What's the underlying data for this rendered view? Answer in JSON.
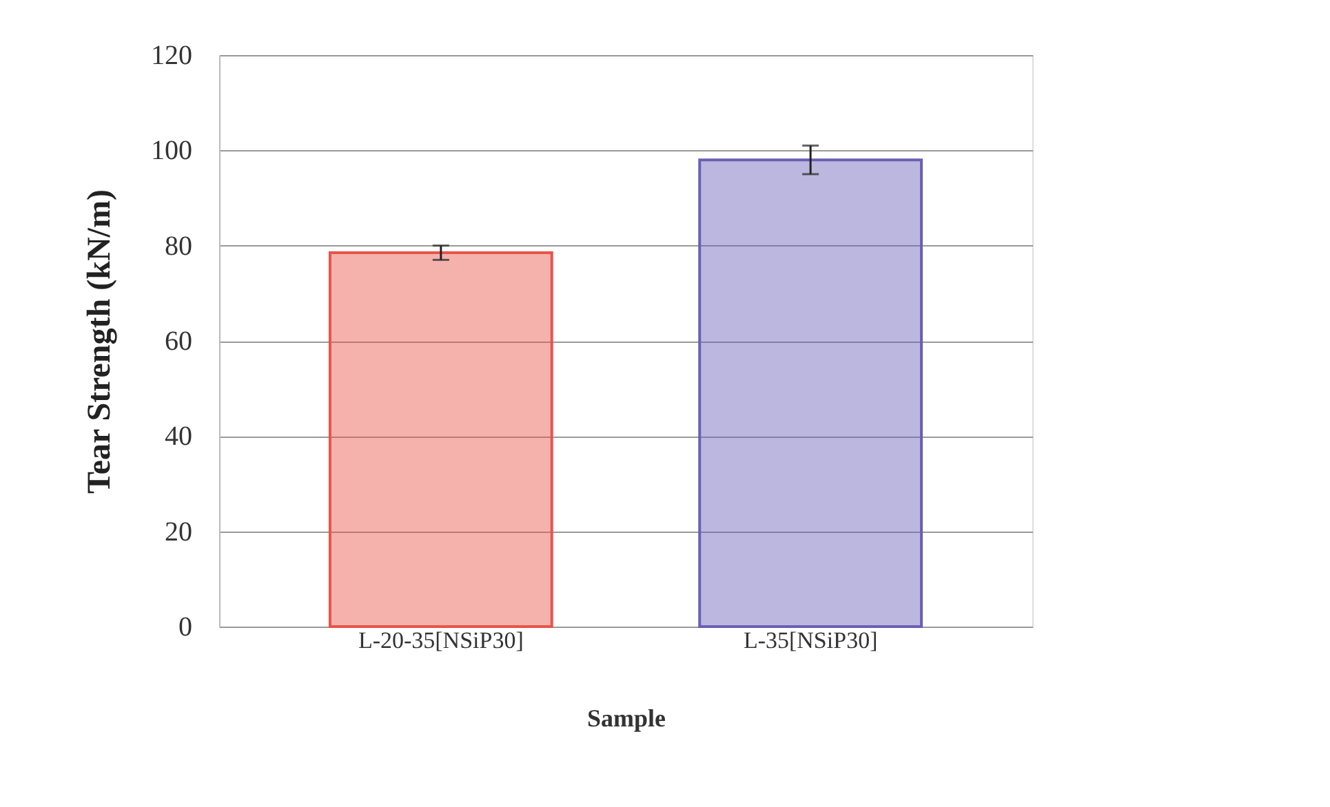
{
  "chart_data": {
    "type": "bar",
    "xlabel": "Sample",
    "ylabel": "Tear Strength (kN/m)",
    "categories": [
      "L-20-35[NSiP30]",
      "L-35[NSiP30]"
    ],
    "values": [
      78.5,
      98
    ],
    "errors": [
      1.5,
      3
    ],
    "colors": [
      "#e8544a",
      "#6a5fb5"
    ],
    "ylim": [
      0,
      120
    ],
    "yticks": [
      0,
      20,
      40,
      60,
      80,
      100,
      120
    ],
    "grid": "y"
  }
}
